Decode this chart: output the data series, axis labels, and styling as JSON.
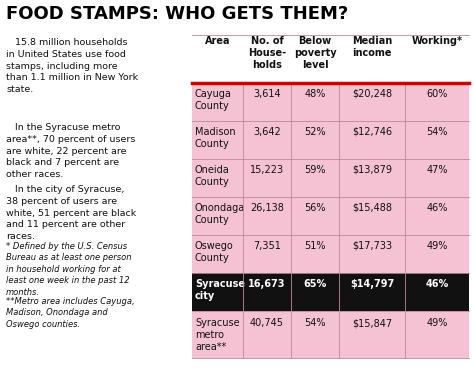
{
  "title": "FOOD STAMPS: WHO GETS THEM?",
  "para1": "   15.8 million households\nin United States use food\nstamps, including more\nthan 1.1 million in New York\nstate.",
  "para2": "   In the Syracuse metro\narea**, 70 percent of users\nare white, 22 percent are\nblack and 7 percent are\nother races.",
  "para3": "   In the city of Syracuse,\n38 percent of users are\nwhite, 51 percent are black\nand 11 percent are other\nraces.",
  "footnote1": "* Defined by the U.S. Census\nBureau as at least one person\nin household working for at\nleast one week in the past 12\nmonths.",
  "footnote2": "**Metro area includes Cayuga,\nMadison, Onondaga and\nOswego counties.",
  "col_headers": [
    "Area",
    "No. of\nHouse-\nholds",
    "Below\npoverty\nlevel",
    "Median\nincome",
    "Working*"
  ],
  "rows": [
    {
      "area": "Cayuga\nCounty",
      "households": "3,614",
      "poverty": "48%",
      "income": "$20,248",
      "working": "60%",
      "dark": false
    },
    {
      "area": "Madison\nCounty",
      "households": "3,642",
      "poverty": "52%",
      "income": "$12,746",
      "working": "54%",
      "dark": false
    },
    {
      "area": "Oneida\nCounty",
      "households": "15,223",
      "poverty": "59%",
      "income": "$13,879",
      "working": "47%",
      "dark": false
    },
    {
      "area": "Onondaga\nCounty",
      "households": "26,138",
      "poverty": "56%",
      "income": "$15,488",
      "working": "46%",
      "dark": false
    },
    {
      "area": "Oswego\nCounty",
      "households": "7,351",
      "poverty": "51%",
      "income": "$17,733",
      "working": "49%",
      "dark": false
    },
    {
      "area": "Syracuse\ncity",
      "households": "16,673",
      "poverty": "65%",
      "income": "$14,797",
      "working": "46%",
      "dark": true
    },
    {
      "area": "Syracuse\nmetro\narea**",
      "households": "40,745",
      "poverty": "54%",
      "income": "$15,847",
      "working": "49%",
      "dark": false
    }
  ],
  "bg_color": "#ffffff",
  "pink_color": "#f5c2d3",
  "dark_color": "#111111",
  "dark_text_color": "#ffffff",
  "header_line_color": "#cc0000",
  "title_color": "#000000",
  "text_color": "#111111",
  "separator_color": "#bb8899"
}
